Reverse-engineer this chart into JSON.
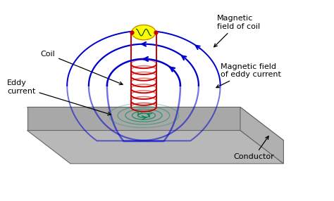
{
  "bg_color": "#ffffff",
  "coil_color": "#cc0000",
  "magnetic_field_color": "#0000cc",
  "eddy_color": "#008855",
  "conductor_top_color": "#c8c8c8",
  "conductor_side_color": "#a8a8a8",
  "conductor_right_color": "#b0b0b0",
  "wire_color": "#cc0000",
  "source_color": "#ffff00",
  "arrow_color": "#000000",
  "text_color": "#000000",
  "labels": {
    "coil": "Coil",
    "magnetic_field_coil": "Magnetic\nfield of coil",
    "magnetic_field_eddy": "Magnetic field\nof eddy current",
    "eddy_current": "Eddy\ncurrent",
    "conductor": "Conductor"
  },
  "figsize": [
    4.74,
    2.86
  ],
  "dpi": 100
}
